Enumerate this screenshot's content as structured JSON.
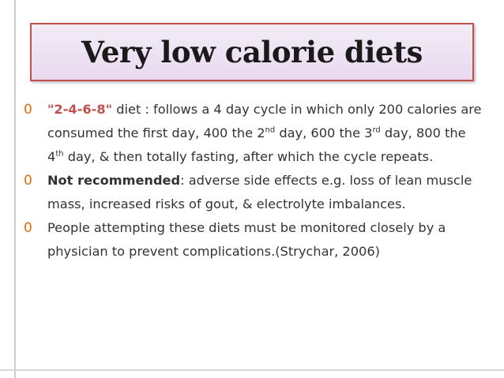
{
  "slide": {
    "title": "Very low calorie diets",
    "bullet_marker": "0",
    "bullets": [
      {
        "code": "\"2-4-6-8\"",
        "text_a": " diet : follows a 4 day cycle in which only 200 calories are consumed the first day, 400 the 2",
        "sup_a": "nd",
        "text_b": " day, 600 the 3",
        "sup_b": "rd",
        "text_c": " day, 800 the 4",
        "sup_c": "th",
        "text_d": " day, &  then totally fasting, after which the cycle repeats."
      },
      {
        "bold": "Not recommended",
        "text": ": adverse side effects e.g. loss of lean muscle mass, increased risks of gout, & electrolyte imbalances."
      },
      {
        "text": "People attempting these diets must be monitored closely by a physician to prevent complications.(Strychar, 2006)"
      }
    ]
  },
  "colors": {
    "title_border": "#c0504d",
    "title_bg": "#e9daf0",
    "bullet_marker": "#e36c0a",
    "code_text": "#c0504d",
    "body_text": "#333333"
  }
}
